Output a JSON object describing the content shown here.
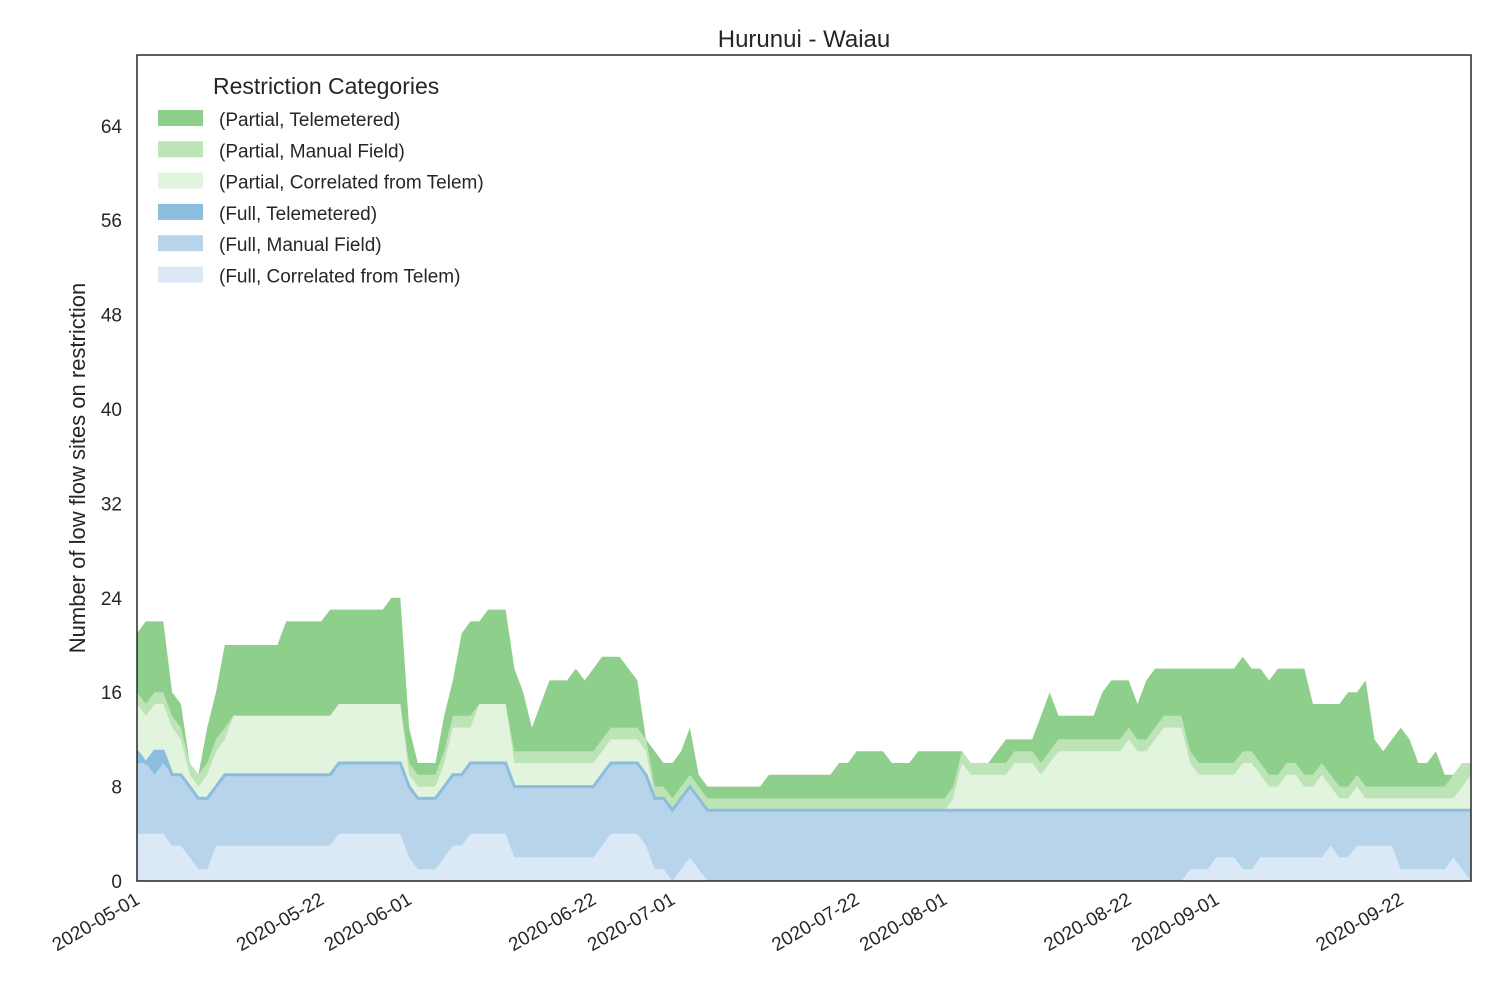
{
  "chart_data": {
    "type": "area",
    "stacked": true,
    "title": "Hurunui - Waiau",
    "xlabel": "",
    "ylabel": "Number of low flow sites on restriction",
    "xlim": [
      "2020-05-01",
      "2020-09-30"
    ],
    "ylim": [
      0,
      70
    ],
    "yticks": [
      0,
      8,
      16,
      24,
      32,
      40,
      48,
      56,
      64
    ],
    "xticks": [
      "2020-05-01",
      "2020-05-22",
      "2020-06-01",
      "2020-06-22",
      "2020-07-01",
      "2020-07-22",
      "2020-08-01",
      "2020-08-22",
      "2020-09-01",
      "2020-09-22"
    ],
    "grid": false,
    "legend": {
      "title": "Restriction Categories",
      "placement": "top-left"
    },
    "stack_order": [
      "(Full, Correlated from Telem)",
      "(Full, Manual Field)",
      "(Full, Telemetered)",
      "(Partial, Correlated from Telem)",
      "(Partial, Manual Field)",
      "(Partial, Telemetered)"
    ],
    "legend_order": [
      "(Partial, Telemetered)",
      "(Partial, Manual Field)",
      "(Partial, Correlated from Telem)",
      "(Full, Telemetered)",
      "(Full, Manual Field)",
      "(Full, Correlated from Telem)"
    ],
    "colors": {
      "(Partial, Telemetered)": "#8ecf8b",
      "(Partial, Manual Field)": "#bde4b7",
      "(Partial, Correlated from Telem)": "#e2f3de",
      "(Full, Telemetered)": "#8bbede",
      "(Full, Manual Field)": "#b8d4ea",
      "(Full, Correlated from Telem)": "#dbe8f5"
    },
    "cumulative_top": {
      "x": [
        "2020-05-01",
        "2020-05-02",
        "2020-05-03",
        "2020-05-04",
        "2020-05-05",
        "2020-05-06",
        "2020-05-07",
        "2020-05-08",
        "2020-05-09",
        "2020-05-10",
        "2020-05-11",
        "2020-05-12",
        "2020-05-13",
        "2020-05-14",
        "2020-05-15",
        "2020-05-16",
        "2020-05-17",
        "2020-05-18",
        "2020-05-19",
        "2020-05-20",
        "2020-05-21",
        "2020-05-22",
        "2020-05-23",
        "2020-05-24",
        "2020-05-25",
        "2020-05-26",
        "2020-05-27",
        "2020-05-28",
        "2020-05-29",
        "2020-05-30",
        "2020-05-31",
        "2020-06-01",
        "2020-06-02",
        "2020-06-03",
        "2020-06-04",
        "2020-06-05",
        "2020-06-06",
        "2020-06-07",
        "2020-06-08",
        "2020-06-09",
        "2020-06-10",
        "2020-06-11",
        "2020-06-12",
        "2020-06-13",
        "2020-06-14",
        "2020-06-15",
        "2020-06-16",
        "2020-06-17",
        "2020-06-18",
        "2020-06-19",
        "2020-06-20",
        "2020-06-21",
        "2020-06-22",
        "2020-06-23",
        "2020-06-24",
        "2020-06-25",
        "2020-06-26",
        "2020-06-27",
        "2020-06-28",
        "2020-06-29",
        "2020-06-30",
        "2020-07-01",
        "2020-07-02",
        "2020-07-03",
        "2020-07-04",
        "2020-07-05",
        "2020-07-06",
        "2020-07-07",
        "2020-07-08",
        "2020-07-09",
        "2020-07-10",
        "2020-07-11",
        "2020-07-12",
        "2020-07-13",
        "2020-07-14",
        "2020-07-15",
        "2020-07-16",
        "2020-07-17",
        "2020-07-18",
        "2020-07-19",
        "2020-07-20",
        "2020-07-21",
        "2020-07-22",
        "2020-07-23",
        "2020-07-24",
        "2020-07-25",
        "2020-07-26",
        "2020-07-27",
        "2020-07-28",
        "2020-07-29",
        "2020-07-30",
        "2020-07-31",
        "2020-08-01",
        "2020-08-02",
        "2020-08-03",
        "2020-08-04",
        "2020-08-05",
        "2020-08-06",
        "2020-08-07",
        "2020-08-08",
        "2020-08-09",
        "2020-08-10",
        "2020-08-11",
        "2020-08-12",
        "2020-08-13",
        "2020-08-14",
        "2020-08-15",
        "2020-08-16",
        "2020-08-17",
        "2020-08-18",
        "2020-08-19",
        "2020-08-20",
        "2020-08-21",
        "2020-08-22",
        "2020-08-23",
        "2020-08-24",
        "2020-08-25",
        "2020-08-26",
        "2020-08-27",
        "2020-08-28",
        "2020-08-29",
        "2020-08-30",
        "2020-08-31",
        "2020-09-01",
        "2020-09-02",
        "2020-09-03",
        "2020-09-04",
        "2020-09-05",
        "2020-09-06",
        "2020-09-07",
        "2020-09-08",
        "2020-09-09",
        "2020-09-10",
        "2020-09-11",
        "2020-09-12",
        "2020-09-13",
        "2020-09-14",
        "2020-09-15",
        "2020-09-16",
        "2020-09-17",
        "2020-09-18",
        "2020-09-19",
        "2020-09-20",
        "2020-09-21",
        "2020-09-22",
        "2020-09-23",
        "2020-09-24",
        "2020-09-25",
        "2020-09-26",
        "2020-09-27",
        "2020-09-28",
        "2020-09-29",
        "2020-09-30"
      ],
      "(Full, Correlated from Telem)": [
        4,
        4,
        4,
        4,
        3,
        3,
        2,
        1,
        1,
        3,
        3,
        3,
        3,
        3,
        3,
        3,
        3,
        3,
        3,
        3,
        3,
        3,
        3,
        4,
        4,
        4,
        4,
        4,
        4,
        4,
        4,
        2,
        1,
        1,
        1,
        2,
        3,
        3,
        4,
        4,
        4,
        4,
        4,
        2,
        2,
        2,
        2,
        2,
        2,
        2,
        2,
        2,
        2,
        3,
        4,
        4,
        4,
        4,
        3,
        1,
        1,
        0,
        1,
        2,
        1,
        0,
        0,
        0,
        0,
        0,
        0,
        0,
        0,
        0,
        0,
        0,
        0,
        0,
        0,
        0,
        0,
        0,
        0,
        0,
        0,
        0,
        0,
        0,
        0,
        0,
        0,
        0,
        0,
        0,
        0,
        0,
        0,
        0,
        0,
        0,
        0,
        0,
        0,
        0,
        0,
        0,
        0,
        0,
        0,
        0,
        0,
        0,
        0,
        0,
        0,
        0,
        0,
        0,
        0,
        0,
        1,
        1,
        1,
        2,
        2,
        2,
        1,
        1,
        2,
        2,
        2,
        2,
        2,
        2,
        2,
        2,
        3,
        2,
        2,
        3,
        3,
        3,
        3,
        3,
        1,
        1,
        1,
        1,
        1,
        1,
        2,
        1,
        0,
        1,
        1,
        1,
        0
      ],
      "(Full, Manual Field)": [
        10,
        10,
        9,
        10,
        9,
        9,
        8,
        7,
        7,
        8,
        9,
        9,
        9,
        9,
        9,
        9,
        9,
        9,
        9,
        9,
        9,
        9,
        9,
        10,
        10,
        10,
        10,
        10,
        10,
        10,
        10,
        8,
        7,
        7,
        7,
        8,
        9,
        9,
        10,
        10,
        10,
        10,
        10,
        8,
        8,
        8,
        8,
        8,
        8,
        8,
        8,
        8,
        8,
        9,
        10,
        10,
        10,
        10,
        9,
        7,
        7,
        6,
        7,
        8,
        7,
        6,
        6,
        6,
        6,
        6,
        6,
        6,
        6,
        6,
        6,
        6,
        6,
        6,
        6,
        6,
        6,
        6,
        6,
        6,
        6,
        6,
        6,
        6,
        6,
        6,
        6,
        6,
        6,
        6,
        6,
        6,
        6,
        6,
        6,
        6,
        6,
        6,
        6,
        6,
        6,
        6,
        6,
        6,
        6,
        6,
        6,
        6,
        6,
        6,
        6,
        6,
        6,
        6,
        6,
        6,
        6,
        6,
        6,
        6,
        6,
        6,
        6,
        6,
        6,
        6,
        6,
        6,
        6,
        6,
        6,
        6,
        6,
        6,
        6,
        6,
        6,
        6,
        6,
        6,
        6,
        6,
        6,
        6,
        6,
        6,
        6,
        6,
        6,
        6,
        6,
        6,
        6
      ],
      "(Full, Telemetered)": [
        11,
        10,
        11,
        11,
        9,
        9,
        8,
        7,
        7,
        8,
        9,
        9,
        9,
        9,
        9,
        9,
        9,
        9,
        9,
        9,
        9,
        9,
        9,
        10,
        10,
        10,
        10,
        10,
        10,
        10,
        10,
        8,
        7,
        7,
        7,
        8,
        9,
        9,
        10,
        10,
        10,
        10,
        10,
        8,
        8,
        8,
        8,
        8,
        8,
        8,
        8,
        8,
        8,
        9,
        10,
        10,
        10,
        10,
        9,
        7,
        7,
        6,
        7,
        8,
        7,
        6,
        6,
        6,
        6,
        6,
        6,
        6,
        6,
        6,
        6,
        6,
        6,
        6,
        6,
        6,
        6,
        6,
        6,
        6,
        6,
        6,
        6,
        6,
        6,
        6,
        6,
        6,
        6,
        6,
        6,
        6,
        6,
        6,
        6,
        6,
        6,
        6,
        6,
        6,
        6,
        6,
        6,
        6,
        6,
        6,
        6,
        6,
        6,
        6,
        6,
        6,
        6,
        6,
        6,
        6,
        6,
        6,
        6,
        6,
        6,
        6,
        6,
        6,
        6,
        6,
        6,
        6,
        6,
        6,
        6,
        6,
        6,
        6,
        6,
        6,
        6,
        6,
        6,
        6,
        6,
        6,
        6,
        6,
        6,
        6,
        6,
        6,
        6,
        6,
        6,
        6,
        7
      ]
    },
    "note_on_data": "Values are cumulative stack tops per series, read off the plot."
  }
}
